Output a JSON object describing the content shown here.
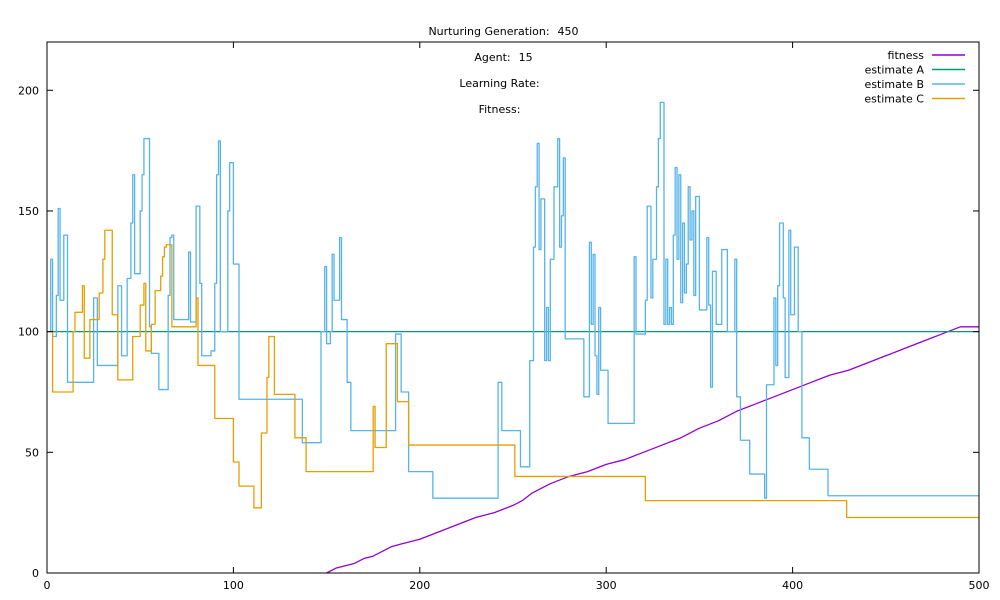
{
  "header": {
    "generation_label": "Nurturing Generation:",
    "generation_value": "450",
    "agent_label": "Agent:",
    "agent_value": "15",
    "learning_rate_label": "Learning Rate:",
    "learning_rate_value": "",
    "fitness_label": "Fitness:",
    "fitness_value": ""
  },
  "chart_data": {
    "type": "line",
    "xlim": [
      0,
      500
    ],
    "ylim": [
      0,
      220
    ],
    "xticks": [
      0,
      100,
      200,
      300,
      400,
      500
    ],
    "yticks": [
      0,
      50,
      100,
      150,
      200
    ],
    "grid": false,
    "legend_position": "top-right",
    "series": [
      {
        "name": "fitness",
        "color": "#9400d3",
        "step": false,
        "points": [
          [
            150,
            0
          ],
          [
            155,
            2
          ],
          [
            160,
            3
          ],
          [
            165,
            4
          ],
          [
            170,
            6
          ],
          [
            175,
            7
          ],
          [
            180,
            9
          ],
          [
            185,
            11
          ],
          [
            190,
            12
          ],
          [
            195,
            13
          ],
          [
            200,
            14
          ],
          [
            210,
            17
          ],
          [
            220,
            20
          ],
          [
            230,
            23
          ],
          [
            240,
            25
          ],
          [
            250,
            28
          ],
          [
            255,
            30
          ],
          [
            260,
            33
          ],
          [
            270,
            37
          ],
          [
            280,
            40
          ],
          [
            290,
            42
          ],
          [
            300,
            45
          ],
          [
            310,
            47
          ],
          [
            320,
            50
          ],
          [
            330,
            53
          ],
          [
            340,
            56
          ],
          [
            350,
            60
          ],
          [
            360,
            63
          ],
          [
            370,
            67
          ],
          [
            380,
            70
          ],
          [
            390,
            73
          ],
          [
            400,
            76
          ],
          [
            410,
            79
          ],
          [
            420,
            82
          ],
          [
            430,
            84
          ],
          [
            440,
            87
          ],
          [
            450,
            90
          ],
          [
            460,
            93
          ],
          [
            470,
            96
          ],
          [
            480,
            99
          ],
          [
            490,
            102
          ],
          [
            500,
            102
          ]
        ]
      },
      {
        "name": "estimate A",
        "color": "#009e73",
        "step": true,
        "points": [
          [
            0,
            100
          ],
          [
            500,
            100
          ]
        ]
      },
      {
        "name": "estimate B",
        "color": "#56b4e9",
        "step": true,
        "points": [
          [
            0,
            100
          ],
          [
            2,
            130
          ],
          [
            3,
            98
          ],
          [
            5,
            115
          ],
          [
            6,
            151
          ],
          [
            7,
            113
          ],
          [
            8,
            113
          ],
          [
            9,
            140
          ],
          [
            11,
            79
          ],
          [
            25,
            114
          ],
          [
            26,
            114
          ],
          [
            27,
            86
          ],
          [
            37,
            86
          ],
          [
            38,
            119
          ],
          [
            40,
            90
          ],
          [
            43,
            122
          ],
          [
            44,
            122
          ],
          [
            45,
            145
          ],
          [
            46,
            165
          ],
          [
            47,
            124
          ],
          [
            49,
            124
          ],
          [
            50,
            150
          ],
          [
            51,
            165
          ],
          [
            52,
            180
          ],
          [
            54,
            180
          ],
          [
            55,
            102
          ],
          [
            56,
            91
          ],
          [
            60,
            76
          ],
          [
            64,
            76
          ],
          [
            65,
            115
          ],
          [
            66,
            139
          ],
          [
            67,
            140
          ],
          [
            68,
            105
          ],
          [
            75,
            105
          ],
          [
            76,
            133
          ],
          [
            77,
            104
          ],
          [
            79,
            104
          ],
          [
            80,
            152
          ],
          [
            82,
            120
          ],
          [
            83,
            90
          ],
          [
            86,
            90
          ],
          [
            88,
            92
          ],
          [
            90,
            120
          ],
          [
            91,
            165
          ],
          [
            92,
            179
          ],
          [
            93,
            100
          ],
          [
            96,
            100
          ],
          [
            97,
            150
          ],
          [
            98,
            170
          ],
          [
            100,
            128
          ],
          [
            102,
            128
          ],
          [
            103,
            72
          ],
          [
            136,
            72
          ],
          [
            137,
            54
          ],
          [
            146,
            54
          ],
          [
            147,
            100
          ],
          [
            149,
            127
          ],
          [
            150,
            95
          ],
          [
            151,
            95
          ],
          [
            152,
            100
          ],
          [
            153,
            132
          ],
          [
            154,
            113
          ],
          [
            156,
            113
          ],
          [
            157,
            139
          ],
          [
            158,
            105
          ],
          [
            160,
            105
          ],
          [
            161,
            79
          ],
          [
            162,
            79
          ],
          [
            163,
            59
          ],
          [
            186,
            59
          ],
          [
            187,
            99
          ],
          [
            189,
            99
          ],
          [
            190,
            75
          ],
          [
            193,
            75
          ],
          [
            194,
            42
          ],
          [
            206,
            42
          ],
          [
            207,
            31
          ],
          [
            241,
            31
          ],
          [
            242,
            79
          ],
          [
            243,
            79
          ],
          [
            244,
            59
          ],
          [
            253,
            59
          ],
          [
            254,
            44
          ],
          [
            258,
            44
          ],
          [
            259,
            88
          ],
          [
            260,
            88
          ],
          [
            261,
            135
          ],
          [
            262,
            160
          ],
          [
            263,
            178
          ],
          [
            264,
            134
          ],
          [
            265,
            155
          ],
          [
            267,
            88
          ],
          [
            268,
            110
          ],
          [
            269,
            88
          ],
          [
            270,
            130
          ],
          [
            272,
            160
          ],
          [
            274,
            180
          ],
          [
            275,
            135
          ],
          [
            276,
            148
          ],
          [
            277,
            172
          ],
          [
            278,
            97
          ],
          [
            287,
            97
          ],
          [
            288,
            73
          ],
          [
            290,
            73
          ],
          [
            291,
            137
          ],
          [
            292,
            103
          ],
          [
            293,
            132
          ],
          [
            294,
            90
          ],
          [
            295,
            74
          ],
          [
            296,
            110
          ],
          [
            297,
            84
          ],
          [
            300,
            84
          ],
          [
            301,
            62
          ],
          [
            314,
            62
          ],
          [
            315,
            131
          ],
          [
            316,
            99
          ],
          [
            320,
            99
          ],
          [
            321,
            113
          ],
          [
            322,
            152
          ],
          [
            323,
            152
          ],
          [
            324,
            114
          ],
          [
            325,
            130
          ],
          [
            327,
            160
          ],
          [
            328,
            180
          ],
          [
            329,
            195
          ],
          [
            331,
            103
          ],
          [
            332,
            130
          ],
          [
            333,
            103
          ],
          [
            334,
            110
          ],
          [
            335,
            103
          ],
          [
            336,
            140
          ],
          [
            337,
            168
          ],
          [
            338,
            130
          ],
          [
            339,
            165
          ],
          [
            340,
            112
          ],
          [
            341,
            145
          ],
          [
            342,
            116
          ],
          [
            343,
            128
          ],
          [
            344,
            160
          ],
          [
            345,
            138
          ],
          [
            346,
            150
          ],
          [
            347,
            115
          ],
          [
            348,
            156
          ],
          [
            350,
            109
          ],
          [
            353,
            109
          ],
          [
            354,
            139
          ],
          [
            355,
            111
          ],
          [
            356,
            77
          ],
          [
            357,
            125
          ],
          [
            358,
            125
          ],
          [
            359,
            103
          ],
          [
            362,
            134
          ],
          [
            364,
            134
          ],
          [
            365,
            100
          ],
          [
            368,
            100
          ],
          [
            369,
            130
          ],
          [
            370,
            73
          ],
          [
            371,
            73
          ],
          [
            372,
            55
          ],
          [
            376,
            55
          ],
          [
            377,
            41
          ],
          [
            384,
            41
          ],
          [
            385,
            31
          ],
          [
            386,
            78
          ],
          [
            389,
            78
          ],
          [
            390,
            114
          ],
          [
            391,
            86
          ],
          [
            392,
            119
          ],
          [
            393,
            145
          ],
          [
            395,
            114
          ],
          [
            396,
            81
          ],
          [
            397,
            81
          ],
          [
            398,
            142
          ],
          [
            399,
            107
          ],
          [
            400,
            107
          ],
          [
            401,
            135
          ],
          [
            402,
            135
          ],
          [
            403,
            100
          ],
          [
            405,
            56
          ],
          [
            408,
            56
          ],
          [
            409,
            43
          ],
          [
            418,
            43
          ],
          [
            419,
            32
          ],
          [
            500,
            32
          ]
        ]
      },
      {
        "name": "estimate C",
        "color": "#e69f00",
        "step": true,
        "points": [
          [
            0,
            100
          ],
          [
            3,
            75
          ],
          [
            13,
            75
          ],
          [
            14,
            100
          ],
          [
            15,
            108
          ],
          [
            18,
            108
          ],
          [
            19,
            119
          ],
          [
            20,
            89
          ],
          [
            22,
            89
          ],
          [
            23,
            105
          ],
          [
            24,
            105
          ],
          [
            25,
            105
          ],
          [
            27,
            105
          ],
          [
            28,
            116
          ],
          [
            30,
            130
          ],
          [
            31,
            142
          ],
          [
            33,
            142
          ],
          [
            34,
            142
          ],
          [
            35,
            107
          ],
          [
            37,
            107
          ],
          [
            38,
            80
          ],
          [
            45,
            80
          ],
          [
            46,
            98
          ],
          [
            49,
            98
          ],
          [
            50,
            111
          ],
          [
            52,
            120
          ],
          [
            53,
            92
          ],
          [
            55,
            92
          ],
          [
            56,
            103
          ],
          [
            58,
            117
          ],
          [
            60,
            117
          ],
          [
            61,
            123
          ],
          [
            62,
            131
          ],
          [
            63,
            135
          ],
          [
            64,
            136
          ],
          [
            66,
            136
          ],
          [
            67,
            102
          ],
          [
            79,
            102
          ],
          [
            80,
            114
          ],
          [
            81,
            86
          ],
          [
            89,
            86
          ],
          [
            90,
            64
          ],
          [
            99,
            64
          ],
          [
            100,
            46
          ],
          [
            103,
            36
          ],
          [
            110,
            36
          ],
          [
            111,
            27
          ],
          [
            114,
            27
          ],
          [
            115,
            58
          ],
          [
            117,
            58
          ],
          [
            118,
            81
          ],
          [
            119,
            98
          ],
          [
            121,
            98
          ],
          [
            122,
            74
          ],
          [
            132,
            74
          ],
          [
            133,
            56
          ],
          [
            138,
            56
          ],
          [
            139,
            42
          ],
          [
            174,
            42
          ],
          [
            175,
            69
          ],
          [
            176,
            52
          ],
          [
            181,
            52
          ],
          [
            182,
            95
          ],
          [
            187,
            95
          ],
          [
            188,
            71
          ],
          [
            193,
            71
          ],
          [
            194,
            53
          ],
          [
            250,
            53
          ],
          [
            251,
            40
          ],
          [
            320,
            40
          ],
          [
            321,
            30
          ],
          [
            428,
            30
          ],
          [
            429,
            23
          ],
          [
            500,
            23
          ]
        ]
      }
    ]
  }
}
